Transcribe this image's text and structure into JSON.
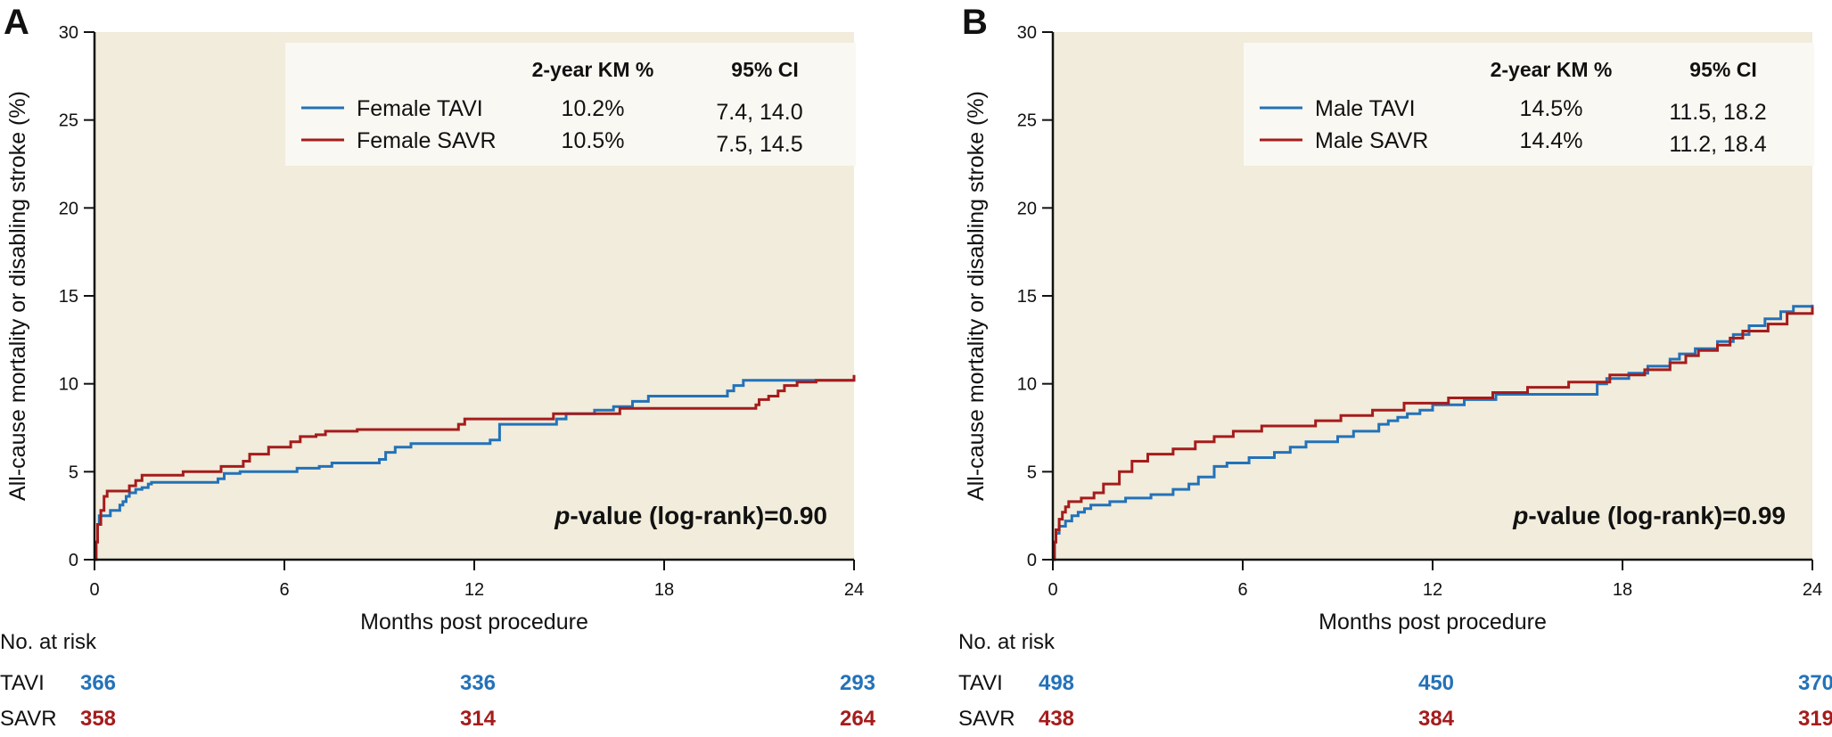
{
  "colors": {
    "tavi": "#2372b9",
    "savr": "#a51c1c",
    "plot_bg": "#f1ecdb",
    "legend_bg": "#faf8f2",
    "axis": "#111111"
  },
  "chart_data": [
    {
      "type": "line",
      "step": true,
      "panel_label": "A",
      "title": "",
      "xlabel": "Months post procedure",
      "ylabel": "All-cause mortality or disabling stroke (%)",
      "xlim": [
        0,
        24
      ],
      "ylim": [
        0,
        30
      ],
      "x_ticks": [
        "0",
        "6",
        "12",
        "18",
        "24"
      ],
      "y_ticks": [
        "0",
        "5",
        "10",
        "15",
        "20",
        "25",
        "30"
      ],
      "grid": false,
      "legend": {
        "placement": "top-right",
        "headers": [
          "2-year KM %",
          "95% CI"
        ],
        "entries": [
          {
            "label": "Female TAVI",
            "km": "10.2%",
            "ci": "7.4, 14.0",
            "color_key": "tavi"
          },
          {
            "label": "Female SAVR",
            "km": "10.5%",
            "ci": "7.5, 14.5",
            "color_key": "savr"
          }
        ]
      },
      "annotation": {
        "p_italic": "p",
        "p_rest": "-value (log-rank)=0.90"
      },
      "series": [
        {
          "name": "Female TAVI",
          "color_key": "tavi",
          "x": [
            0,
            0.05,
            0.1,
            0.15,
            0.5,
            0.8,
            0.9,
            1.0,
            1.1,
            1.3,
            1.5,
            1.7,
            1.8,
            3.9,
            4.1,
            4.6,
            6.4,
            7.1,
            7.5,
            9.0,
            9.2,
            9.5,
            10.0,
            12.5,
            12.8,
            14.6,
            14.9,
            15.8,
            16.4,
            17.0,
            17.5,
            20.0,
            20.2,
            20.5,
            24.0
          ],
          "y": [
            0,
            1.0,
            2.0,
            2.5,
            2.8,
            3.1,
            3.3,
            3.6,
            3.8,
            4.0,
            4.1,
            4.3,
            4.4,
            4.6,
            4.9,
            5.0,
            5.2,
            5.3,
            5.5,
            5.7,
            6.1,
            6.4,
            6.6,
            6.8,
            7.7,
            8.0,
            8.3,
            8.5,
            8.7,
            9.0,
            9.3,
            9.6,
            9.9,
            10.2,
            10.2
          ]
        },
        {
          "name": "Female SAVR",
          "color_key": "savr",
          "x": [
            0,
            0.05,
            0.1,
            0.2,
            0.3,
            0.4,
            0.7,
            1.1,
            1.3,
            1.5,
            2.8,
            4.0,
            4.7,
            4.9,
            5.5,
            6.2,
            6.5,
            7.0,
            7.3,
            8.3,
            11.5,
            11.7,
            14.5,
            16.6,
            20.9,
            21.0,
            21.3,
            21.6,
            21.8,
            22.2,
            22.8,
            23.9,
            24.0
          ],
          "y": [
            0,
            1.0,
            2.0,
            2.8,
            3.6,
            3.9,
            3.9,
            4.2,
            4.5,
            4.8,
            5.0,
            5.3,
            5.6,
            6.0,
            6.4,
            6.7,
            7.0,
            7.1,
            7.3,
            7.4,
            7.7,
            8.0,
            8.3,
            8.6,
            8.8,
            9.1,
            9.3,
            9.6,
            9.9,
            10.1,
            10.2,
            10.2,
            10.5
          ]
        }
      ],
      "number_at_risk": {
        "title": "No. at risk",
        "times": [
          0,
          12,
          24
        ],
        "rows": [
          {
            "label": "TAVI",
            "values": [
              366,
              336,
              293
            ],
            "color_key": "tavi"
          },
          {
            "label": "SAVR",
            "values": [
              358,
              314,
              264
            ],
            "color_key": "savr"
          }
        ]
      }
    },
    {
      "type": "line",
      "step": true,
      "panel_label": "B",
      "title": "",
      "xlabel": "Months post procedure",
      "ylabel": "All-cause mortality or disabling stroke (%)",
      "xlim": [
        0,
        24
      ],
      "ylim": [
        0,
        30
      ],
      "x_ticks": [
        "0",
        "6",
        "12",
        "18",
        "24"
      ],
      "y_ticks": [
        "0",
        "5",
        "10",
        "15",
        "20",
        "25",
        "30"
      ],
      "grid": false,
      "legend": {
        "placement": "top-right",
        "headers": [
          "2-year KM %",
          "95% CI"
        ],
        "entries": [
          {
            "label": "Male TAVI",
            "km": "14.5%",
            "ci": "11.5, 18.2",
            "color_key": "tavi"
          },
          {
            "label": "Male SAVR",
            "km": "14.4%",
            "ci": "11.2, 18.4",
            "color_key": "savr"
          }
        ]
      },
      "annotation": {
        "p_italic": "p",
        "p_rest": "-value (log-rank)=0.99"
      },
      "series": [
        {
          "name": "Male TAVI",
          "color_key": "tavi",
          "x": [
            0,
            0.05,
            0.1,
            0.2,
            0.4,
            0.6,
            0.8,
            1.0,
            1.2,
            1.8,
            2.3,
            3.1,
            3.8,
            4.3,
            4.6,
            5.1,
            5.5,
            6.2,
            7.0,
            7.5,
            8.0,
            9.0,
            9.5,
            10.3,
            10.6,
            10.9,
            11.2,
            11.6,
            12.0,
            13.0,
            14.0,
            17.2,
            17.5,
            18.2,
            18.8,
            19.5,
            19.8,
            20.3,
            21.0,
            21.5,
            22.0,
            22.5,
            23.0,
            23.4,
            24.0
          ],
          "y": [
            0,
            1.0,
            1.5,
            1.9,
            2.2,
            2.5,
            2.7,
            2.9,
            3.1,
            3.3,
            3.5,
            3.7,
            4.0,
            4.3,
            4.7,
            5.3,
            5.5,
            5.8,
            6.1,
            6.4,
            6.7,
            7.0,
            7.3,
            7.7,
            7.9,
            8.1,
            8.3,
            8.5,
            8.8,
            9.1,
            9.4,
            10.0,
            10.3,
            10.6,
            11.0,
            11.4,
            11.7,
            12.0,
            12.4,
            12.8,
            13.3,
            13.7,
            14.1,
            14.4,
            14.5
          ]
        },
        {
          "name": "Male SAVR",
          "color_key": "savr",
          "x": [
            0,
            0.05,
            0.1,
            0.2,
            0.3,
            0.4,
            0.5,
            0.9,
            1.3,
            1.6,
            2.1,
            2.5,
            3.0,
            3.8,
            4.5,
            5.1,
            5.7,
            6.6,
            8.3,
            9.1,
            10.1,
            11.1,
            12.5,
            13.9,
            15.0,
            16.3,
            17.6,
            18.7,
            19.5,
            20.0,
            20.4,
            21.0,
            21.4,
            21.8,
            22.6,
            23.2,
            24.0
          ],
          "y": [
            0,
            1.0,
            1.7,
            2.3,
            2.7,
            3.0,
            3.3,
            3.5,
            3.8,
            4.3,
            5.0,
            5.6,
            6.0,
            6.3,
            6.7,
            7.0,
            7.3,
            7.6,
            7.9,
            8.2,
            8.5,
            8.9,
            9.2,
            9.5,
            9.8,
            10.1,
            10.5,
            10.8,
            11.2,
            11.6,
            11.9,
            12.2,
            12.6,
            13.0,
            13.4,
            14.0,
            14.4
          ]
        }
      ],
      "number_at_risk": {
        "title": "No. at risk",
        "times": [
          0,
          12,
          24
        ],
        "rows": [
          {
            "label": "TAVI",
            "values": [
              498,
              450,
              370
            ],
            "color_key": "tavi"
          },
          {
            "label": "SAVR",
            "values": [
              438,
              384,
              319
            ],
            "color_key": "savr"
          }
        ]
      }
    }
  ]
}
